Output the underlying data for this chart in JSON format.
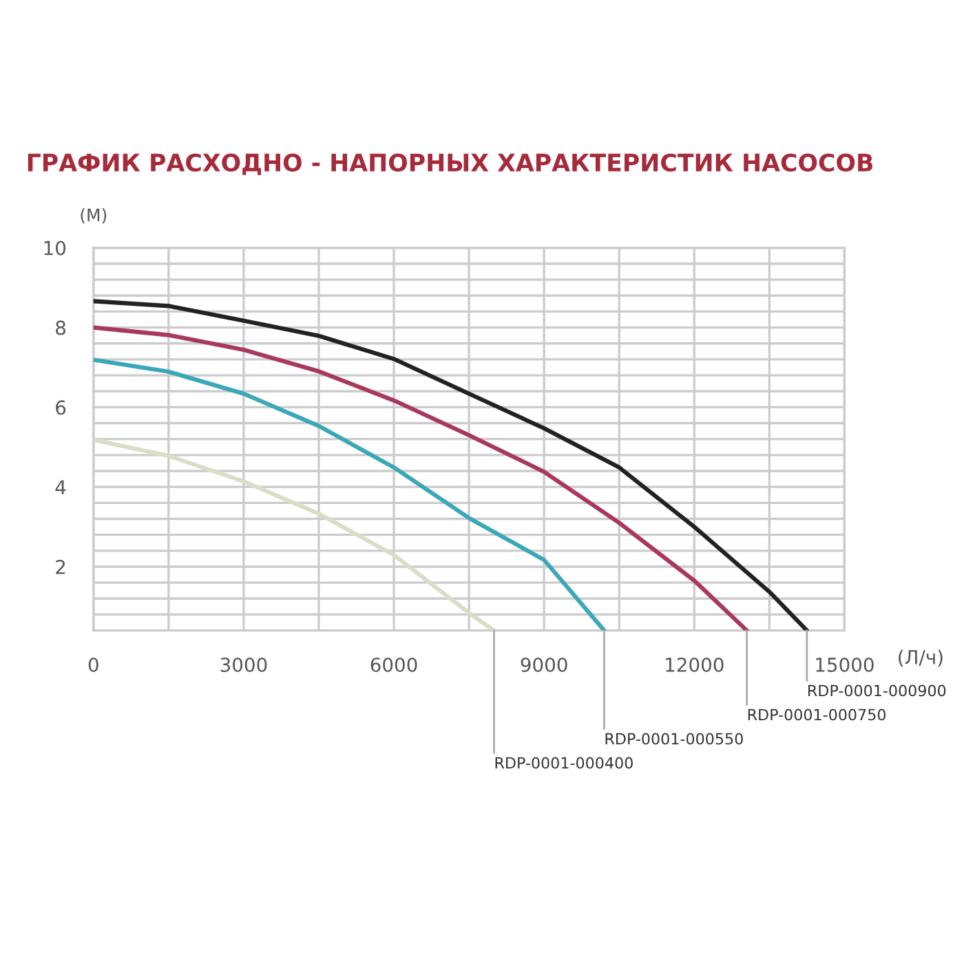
{
  "chart_data": {
    "type": "line",
    "title": "ГРАФИК РАСХОДНО - НАПОРНЫХ ХАРАКТЕРИСТИК НАСОСОВ",
    "ylabel": "(М)",
    "xlabel": "(Л/ч)",
    "xlim": [
      0,
      15000
    ],
    "ylim": [
      0.4,
      10
    ],
    "xticks": [
      0,
      {
        "value": 1500,
        "label": null
      },
      3000,
      {
        "value": 4500,
        "label": null
      },
      6000,
      {
        "value": 7500,
        "label": null
      },
      9000,
      {
        "value": 10500,
        "label": null
      },
      12000,
      {
        "value": 13500,
        "label": null
      },
      15000
    ],
    "yticks": [
      {
        "value": 0.4,
        "label": null
      },
      {
        "value": 0.8,
        "label": null
      },
      {
        "value": 1.2,
        "label": null
      },
      {
        "value": 1.6,
        "label": null
      },
      2,
      {
        "value": 2.4,
        "label": null
      },
      {
        "value": 2.8,
        "label": null
      },
      {
        "value": 3.2,
        "label": null
      },
      {
        "value": 3.6,
        "label": null
      },
      4,
      {
        "value": 4.4,
        "label": null
      },
      {
        "value": 4.8,
        "label": null
      },
      {
        "value": 5.2,
        "label": null
      },
      {
        "value": 5.6,
        "label": null
      },
      6,
      {
        "value": 6.4,
        "label": null
      },
      {
        "value": 6.8,
        "label": null
      },
      {
        "value": 7.2,
        "label": null
      },
      {
        "value": 7.6,
        "label": null
      },
      8,
      {
        "value": 8.4,
        "label": null
      },
      {
        "value": 8.8,
        "label": null
      },
      {
        "value": 9.2,
        "label": null
      },
      {
        "value": 9.6,
        "label": null
      },
      10
    ],
    "grid": true,
    "legend": false,
    "marker": "none",
    "line_style": "solid",
    "series": [
      {
        "name": "RDP-0001-000900",
        "color": "#222222",
        "x": [
          0,
          1500,
          3000,
          4500,
          6000,
          7500,
          9000,
          10500,
          12000,
          13500,
          14250
        ],
        "values": [
          8.66,
          8.54,
          8.17,
          7.79,
          7.21,
          6.34,
          5.47,
          4.49,
          3.0,
          1.37,
          0.4
        ]
      },
      {
        "name": "RDP-0001-000750",
        "color": "#a8395a",
        "x": [
          0,
          1500,
          3000,
          4500,
          6000,
          7500,
          9000,
          10500,
          12000,
          13050
        ],
        "values": [
          8.0,
          7.81,
          7.44,
          6.9,
          6.17,
          5.3,
          4.38,
          3.1,
          1.65,
          0.4
        ]
      },
      {
        "name": "RDP-0001-000550",
        "color": "#3aa8b8",
        "x": [
          0,
          1500,
          3000,
          4500,
          6000,
          7500,
          9000,
          10200
        ],
        "values": [
          7.19,
          6.89,
          6.34,
          5.53,
          4.49,
          3.22,
          2.17,
          0.4
        ]
      },
      {
        "name": "RDP-0001-000400",
        "color": "#dcdcc8",
        "x": [
          0,
          1500,
          3000,
          4500,
          6000,
          7500,
          8000
        ],
        "values": [
          5.18,
          4.78,
          4.14,
          3.33,
          2.29,
          0.84,
          0.4
        ]
      }
    ]
  }
}
